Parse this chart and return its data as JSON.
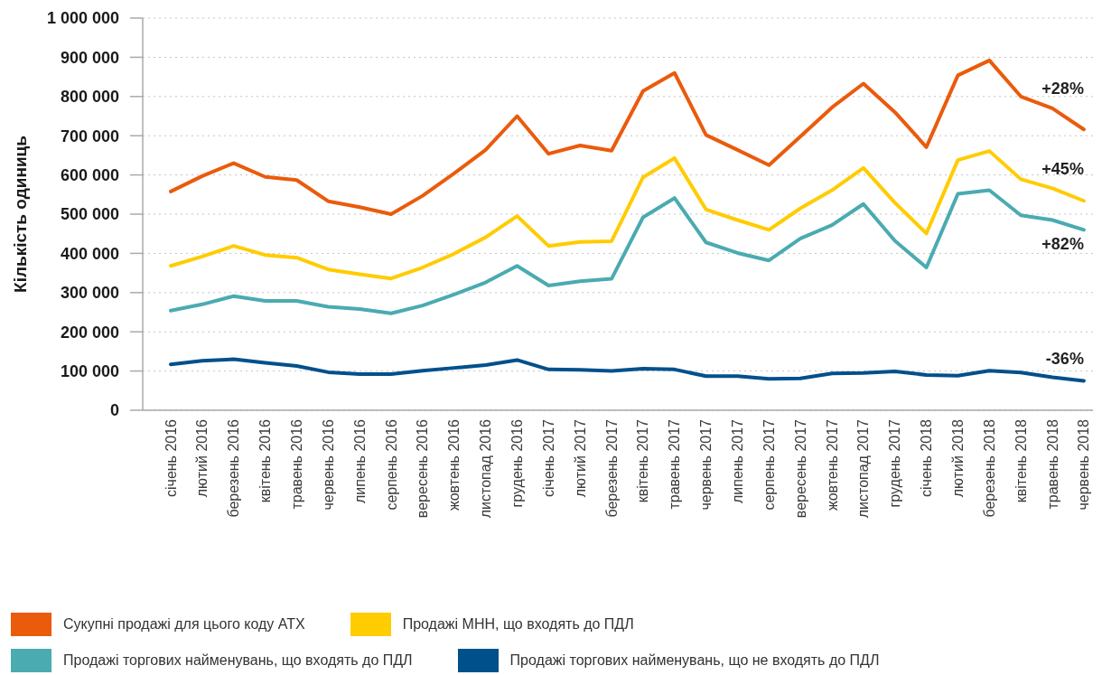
{
  "chart_data": {
    "type": "line",
    "ylabel": "Кількість одиниць",
    "categories": [
      "січень 2016",
      "лютий 2016",
      "березень 2016",
      "квітень 2016",
      "травень 2016",
      "червень 2016",
      "липень 2016",
      "серпень 2016",
      "вересень 2016",
      "жовтень 2016",
      "листопад 2016",
      "грудень 2016",
      "січень 2017",
      "лютий 2017",
      "березень 2017",
      "квітень 2017",
      "травень 2017",
      "червень 2017",
      "липень 2017",
      "серпень 2017",
      "вересень 2017",
      "жовтень 2017",
      "листопад 2017",
      "грудень 2017",
      "січень 2018",
      "лютий 2018",
      "березень 2018",
      "квітень 2018",
      "травень 2018",
      "червень 2018"
    ],
    "series": [
      {
        "name": "Сукупні продажі для цього коду АТХ",
        "color": "#ea5b0c",
        "values": [
          558000,
          597000,
          630000,
          595000,
          587000,
          533000,
          518000,
          500000,
          547000,
          604000,
          664000,
          750000,
          654000,
          675000,
          662000,
          814000,
          860000,
          702000,
          664000,
          625000,
          698000,
          772000,
          833000,
          760000,
          671000,
          854000,
          892000,
          800000,
          770000,
          716000
        ]
      },
      {
        "name": "Продажі МНН, що входять до ПДЛ",
        "color": "#ffcc00",
        "values": [
          368000,
          392000,
          419000,
          396000,
          389000,
          359000,
          347000,
          336000,
          364000,
          399000,
          441000,
          495000,
          419000,
          429000,
          431000,
          594000,
          643000,
          512000,
          485000,
          460000,
          515000,
          561000,
          618000,
          529000,
          451000,
          638000,
          661000,
          589000,
          566000,
          534000
        ]
      },
      {
        "name": "Продажі торгових найменувань, що входять до ПДЛ",
        "color": "#4aabb1",
        "values": [
          254000,
          270000,
          291000,
          279000,
          279000,
          264000,
          258000,
          247000,
          267000,
          295000,
          326000,
          368000,
          318000,
          329000,
          335000,
          492000,
          541000,
          428000,
          401000,
          382000,
          438000,
          472000,
          526000,
          432000,
          364000,
          552000,
          561000,
          497000,
          485000,
          460000
        ]
      },
      {
        "name": "Продажі торгових найменувань, що не входять до ПДЛ",
        "color": "#00508c",
        "values": [
          117000,
          126000,
          130000,
          121000,
          113000,
          97000,
          92000,
          92000,
          101000,
          108000,
          115000,
          128000,
          104000,
          103000,
          100000,
          106000,
          104000,
          87000,
          87000,
          80000,
          81000,
          94000,
          95000,
          99000,
          90000,
          88000,
          101000,
          96000,
          84000,
          75000
        ]
      }
    ],
    "ylim": [
      0,
      1000000
    ],
    "yticks": [
      0,
      {
        "value": 100000,
        "label": "100 000"
      },
      {
        "value": 200000,
        "label": "200 000"
      },
      {
        "value": 300000,
        "label": "300 000"
      },
      {
        "value": 400000,
        "label": "400 000"
      },
      {
        "value": 500000,
        "label": "500 000"
      },
      {
        "value": 600000,
        "label": "600 000"
      },
      {
        "value": 700000,
        "label": "700 000"
      },
      {
        "value": 800000,
        "label": "800 000"
      },
      {
        "value": 900000,
        "label": "900 000"
      },
      {
        "value": 1000000,
        "label": "1 000 000"
      }
    ],
    "grid": "y",
    "legend": "bottom",
    "annotations": [
      "+28%",
      "+45%",
      "+82%",
      "-36%"
    ]
  }
}
